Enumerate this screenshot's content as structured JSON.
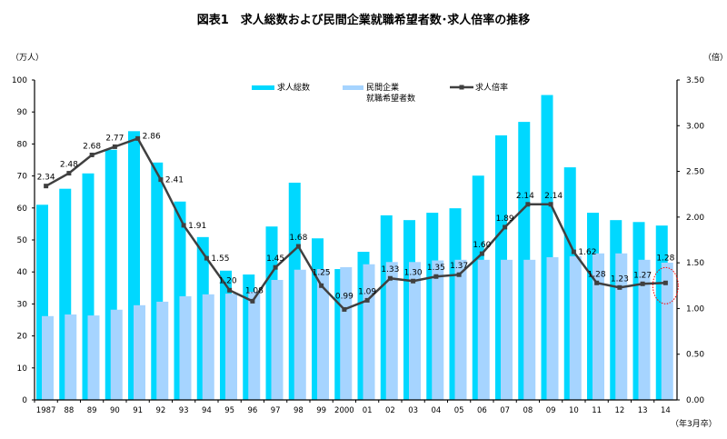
{
  "chart_data": {
    "type": "bar+line",
    "title": "図表1　求人総数および民間企業就職希望者数･求人倍率の推移",
    "y_left_label": "（万人）",
    "y_right_label": "（倍）",
    "x_unit_label": "（年3月卒）",
    "y_left_lim": [
      0,
      100
    ],
    "y_left_ticks": [
      "0",
      "10",
      "20",
      "30",
      "40",
      "50",
      "60",
      "70",
      "80",
      "90",
      "100"
    ],
    "y_right_lim": [
      0,
      3.5
    ],
    "y_right_ticks": [
      "0.00",
      "0.50",
      "1.00",
      "1.50",
      "2.00",
      "2.50",
      "3.00",
      "3.50"
    ],
    "grid": false,
    "legend_position": "top",
    "categories": [
      "1987",
      "88",
      "89",
      "90",
      "91",
      "92",
      "93",
      "94",
      "95",
      "96",
      "97",
      "98",
      "99",
      "2000",
      "01",
      "02",
      "03",
      "04",
      "05",
      "06",
      "07",
      "08",
      "09",
      "10",
      "11",
      "12",
      "13",
      "14"
    ],
    "series": [
      {
        "name": "求人総数",
        "type": "bar",
        "axis": "left",
        "color": "#00d8ff",
        "values": [
          61.0,
          66.0,
          70.8,
          78.2,
          84.0,
          74.2,
          62.0,
          50.9,
          40.4,
          39.2,
          54.2,
          67.9,
          50.5,
          40.9,
          46.3,
          57.7,
          56.2,
          58.5,
          59.9,
          70.1,
          82.7,
          86.9,
          95.3,
          72.7,
          58.5,
          56.2,
          55.6,
          54.5
        ]
      },
      {
        "name": "民間企業\n就職希望者数",
        "name_lines": [
          "民間企業",
          "就職希望者数"
        ],
        "type": "bar",
        "axis": "left",
        "color": "#a6d4ff",
        "values": [
          26.2,
          26.7,
          26.4,
          28.2,
          29.6,
          30.7,
          32.4,
          33.0,
          33.2,
          33.8,
          37.5,
          40.7,
          40.9,
          41.5,
          42.4,
          43.1,
          43.1,
          43.6,
          43.8,
          43.8,
          43.8,
          43.8,
          44.6,
          44.9,
          45.8,
          45.8,
          43.8,
          42.9
        ]
      },
      {
        "name": "求人倍率",
        "type": "line",
        "axis": "right",
        "color": "#404040",
        "values": [
          2.34,
          2.48,
          2.68,
          2.77,
          2.86,
          2.41,
          1.91,
          1.55,
          1.2,
          1.08,
          1.45,
          1.68,
          1.25,
          0.99,
          1.09,
          1.33,
          1.3,
          1.35,
          1.37,
          1.6,
          1.89,
          2.14,
          2.14,
          1.62,
          1.28,
          1.23,
          1.27,
          1.28
        ],
        "labels": [
          "2.34",
          "2.48",
          "2.68",
          "2.77",
          "2.86",
          "2.41",
          "1.91",
          "1.55",
          "1.20",
          "1.08",
          "1.45",
          "1.68",
          "1.25",
          "0.99",
          "1.09",
          "1.33",
          "1.30",
          "1.35",
          "1.37",
          "1.60",
          "1.89",
          "2.14",
          "2.14",
          "1.62",
          "1.28",
          "1.23",
          "1.27",
          "1.28"
        ]
      }
    ],
    "annotations": [
      {
        "type": "dotted-circle",
        "category": "14",
        "color": "#ff0000"
      }
    ]
  }
}
